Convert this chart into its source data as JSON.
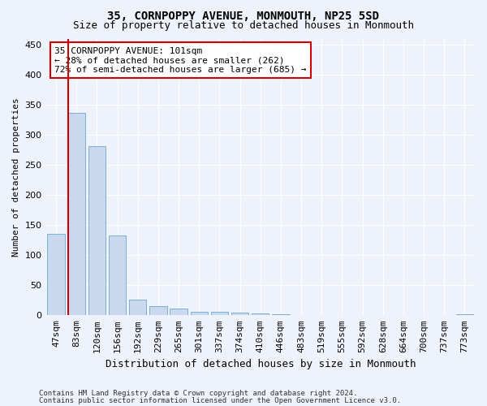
{
  "title": "35, CORNPOPPY AVENUE, MONMOUTH, NP25 5SD",
  "subtitle": "Size of property relative to detached houses in Monmouth",
  "xlabel": "Distribution of detached houses by size in Monmouth",
  "ylabel": "Number of detached properties",
  "bar_color": "#c8d8ef",
  "bar_edge_color": "#7bafd4",
  "categories": [
    "47sqm",
    "83sqm",
    "120sqm",
    "156sqm",
    "192sqm",
    "229sqm",
    "265sqm",
    "301sqm",
    "337sqm",
    "374sqm",
    "410sqm",
    "446sqm",
    "483sqm",
    "519sqm",
    "555sqm",
    "592sqm",
    "628sqm",
    "664sqm",
    "700sqm",
    "737sqm",
    "773sqm"
  ],
  "values": [
    135,
    336,
    281,
    133,
    26,
    15,
    11,
    6,
    6,
    4,
    3,
    2,
    1,
    1,
    0,
    0,
    0,
    0,
    0,
    0,
    2
  ],
  "vline_x_index": 1.0,
  "vline_color": "#cc0000",
  "annotation_text": "35 CORNPOPPY AVENUE: 101sqm\n← 28% of detached houses are smaller (262)\n72% of semi-detached houses are larger (685) →",
  "annotation_box_color": "white",
  "annotation_box_edge": "#cc0000",
  "ylim": [
    0,
    460
  ],
  "yticks": [
    0,
    50,
    100,
    150,
    200,
    250,
    300,
    350,
    400,
    450
  ],
  "footer1": "Contains HM Land Registry data © Crown copyright and database right 2024.",
  "footer2": "Contains public sector information licensed under the Open Government Licence v3.0.",
  "bg_color": "#eef2fb",
  "grid_color": "white",
  "title_fontsize": 10,
  "subtitle_fontsize": 9,
  "ylabel_fontsize": 8,
  "xlabel_fontsize": 9,
  "tick_fontsize": 8,
  "footer_fontsize": 6.5
}
